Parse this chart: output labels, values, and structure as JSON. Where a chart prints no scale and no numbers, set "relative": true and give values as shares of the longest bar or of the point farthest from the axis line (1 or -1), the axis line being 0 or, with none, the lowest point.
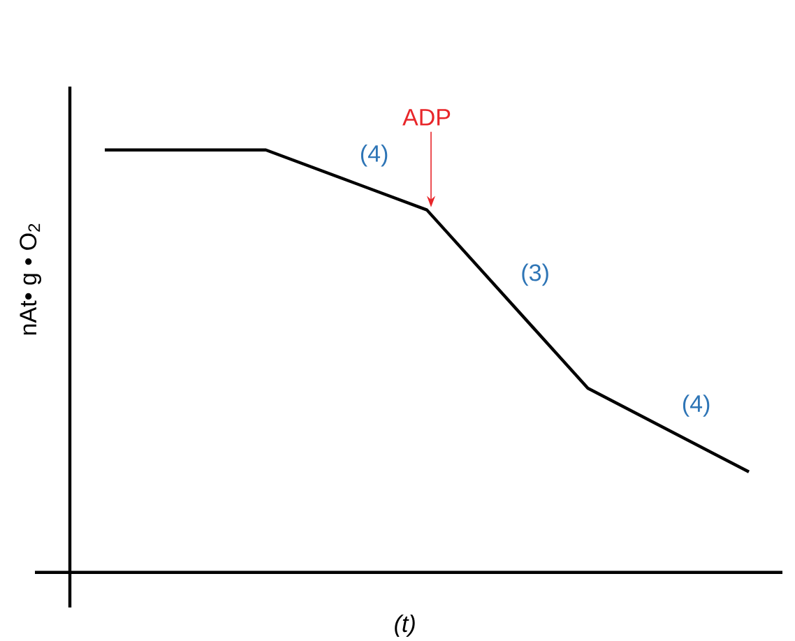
{
  "chart_data": {
    "type": "line",
    "relative": true,
    "xlabel": "*(t)*",
    "ylabel": "nAt• g • O$_{2}$",
    "categories": [
      null,
      null,
      null,
      null,
      null
    ],
    "values": [
      1,
      1,
      0.858,
      0.436,
      0.238
    ],
    "color": "#000000",
    "annotations": [
      "ADP",
      "(4)",
      "(3)",
      "(4)"
    ]
  }
}
